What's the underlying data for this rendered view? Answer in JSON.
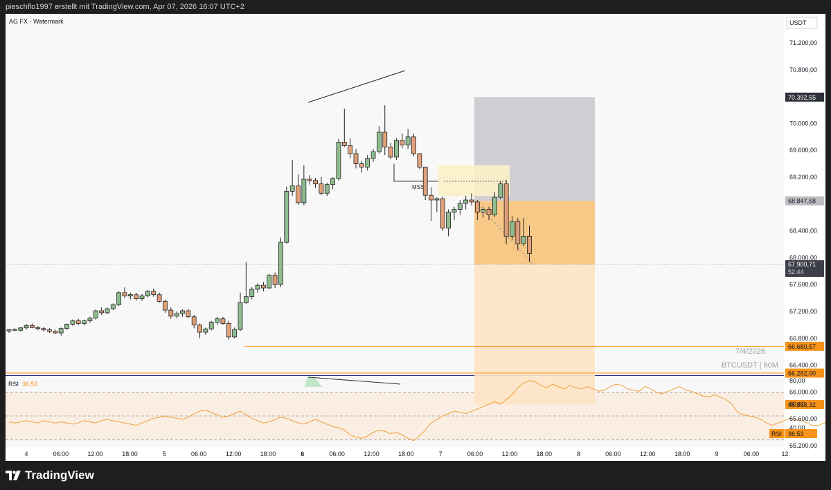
{
  "header": {
    "text": "pieschflo1997 erstellt mit TradingView.com, Apr 07, 2026 16:07 UTC+2"
  },
  "chart": {
    "title": "AG FX - Watermark",
    "currency": "USDT",
    "watermark_date": "7/4/2026",
    "watermark_symbol": "BTCUSDT | 60M",
    "mss_label": "MSS",
    "colors": {
      "up_body": "#8fbc8f",
      "down_body": "#e0a07a",
      "accent": "#f7931a",
      "price_tag": "#3c3f48"
    }
  },
  "price_axis": {
    "ticks": [
      "71.200,00",
      "70.800,00",
      "70.000,00",
      "69.600,00",
      "69.200,00",
      "68.400,00",
      "68.000,00",
      "67.600,00",
      "67.200,00",
      "66.800,00",
      "66.400,00",
      "66.000,00",
      "65.600,00",
      "65.200,00"
    ],
    "labels": {
      "target": "70.392,55",
      "entry": "68.847,68",
      "current_price": "67.900,71",
      "countdown": "52:44",
      "level1": "66.680,57",
      "level2": "66.282,00",
      "stop": "65.813,32"
    }
  },
  "rsi": {
    "label": "RSI",
    "value": "36,53",
    "axis_ticks": [
      "80,00",
      "60,00",
      "40,00"
    ],
    "tag_label": "RSI",
    "tag_value": "36,53",
    "values": [
      45,
      44,
      45,
      46,
      45,
      44,
      46,
      45,
      44,
      45,
      44,
      43,
      44,
      46,
      45,
      44,
      46,
      47,
      46,
      45,
      44,
      43,
      42,
      44,
      46,
      48,
      49,
      50,
      49,
      48,
      47,
      49,
      52,
      54,
      55,
      53,
      51,
      49,
      50,
      52,
      54,
      51,
      48,
      46,
      44,
      45,
      47,
      49,
      48,
      46,
      44,
      43,
      45,
      47,
      45,
      43,
      41,
      40,
      38,
      34,
      32,
      31,
      33,
      36,
      38,
      37,
      35,
      36,
      34,
      31,
      29,
      33,
      38,
      44,
      47,
      50,
      52,
      54,
      53,
      52,
      54,
      56,
      58,
      60,
      62,
      60,
      64,
      68,
      74,
      78,
      80,
      79,
      76,
      74,
      77,
      75,
      73,
      76,
      74,
      73,
      75,
      73,
      71,
      72,
      75,
      77,
      76,
      73,
      72,
      71,
      75,
      73,
      70,
      69,
      71,
      73,
      75,
      72,
      71,
      69,
      67,
      66,
      68,
      66,
      64,
      60,
      53,
      51,
      50,
      49,
      47,
      44,
      42,
      44,
      46,
      48,
      47,
      46,
      44,
      42,
      42,
      44,
      47,
      49,
      47,
      44,
      42,
      41,
      42,
      41,
      39,
      37,
      36
    ]
  },
  "time_axis": {
    "ticks": [
      "4",
      "06:00",
      "12:00",
      "18:00",
      "5",
      "06:00",
      "12:00",
      "18:00",
      "6",
      "06:00",
      "12:00",
      "18:00",
      "7",
      "06:00",
      "12:00",
      "18:00",
      "8",
      "06:00",
      "12:00",
      "18:00",
      "9",
      "06:00",
      "12:"
    ]
  },
  "candles": [
    [
      66910,
      66938,
      66880,
      66930
    ],
    [
      66930,
      66950,
      66900,
      66920
    ],
    [
      66920,
      66970,
      66900,
      66955
    ],
    [
      66955,
      67010,
      66930,
      66990
    ],
    [
      66990,
      67020,
      66950,
      66960
    ],
    [
      66960,
      66980,
      66920,
      66945
    ],
    [
      66945,
      66970,
      66900,
      66925
    ],
    [
      66925,
      66950,
      66880,
      66905
    ],
    [
      66905,
      66930,
      66860,
      66880
    ],
    [
      66880,
      66960,
      66840,
      66945
    ],
    [
      66945,
      67020,
      66930,
      67010
    ],
    [
      67010,
      67080,
      66990,
      67060
    ],
    [
      67060,
      67090,
      67000,
      67020
    ],
    [
      67020,
      67080,
      66990,
      67060
    ],
    [
      67060,
      67120,
      67030,
      67100
    ],
    [
      67100,
      67230,
      67080,
      67210
    ],
    [
      67210,
      67260,
      67150,
      67180
    ],
    [
      67180,
      67260,
      67160,
      67240
    ],
    [
      67240,
      67320,
      67220,
      67300
    ],
    [
      67300,
      67500,
      67280,
      67480
    ],
    [
      67480,
      67560,
      67400,
      67430
    ],
    [
      67430,
      67480,
      67380,
      67450
    ],
    [
      67450,
      67480,
      67360,
      67390
    ],
    [
      67390,
      67460,
      67360,
      67430
    ],
    [
      67430,
      67520,
      67410,
      67500
    ],
    [
      67500,
      67540,
      67420,
      67450
    ],
    [
      67450,
      67480,
      67330,
      67350
    ],
    [
      67350,
      67380,
      67180,
      67220
    ],
    [
      67220,
      67260,
      67090,
      67130
    ],
    [
      67130,
      67200,
      67100,
      67170
    ],
    [
      67170,
      67230,
      67120,
      67210
    ],
    [
      67210,
      67240,
      67100,
      67120
    ],
    [
      67120,
      67150,
      66950,
      67000
    ],
    [
      67000,
      67020,
      66800,
      66890
    ],
    [
      66890,
      66960,
      66850,
      66940
    ],
    [
      66940,
      67060,
      66920,
      67040
    ],
    [
      67040,
      67120,
      67000,
      67090
    ],
    [
      67090,
      67120,
      67000,
      67020
    ],
    [
      67020,
      67060,
      66780,
      66820
    ],
    [
      66820,
      66960,
      66800,
      66930
    ],
    [
      66930,
      67480,
      66910,
      67330
    ],
    [
      67330,
      67940,
      67310,
      67420
    ],
    [
      67420,
      67560,
      67380,
      67530
    ],
    [
      67530,
      67620,
      67480,
      67590
    ],
    [
      67590,
      67640,
      67500,
      67550
    ],
    [
      67550,
      67760,
      67530,
      67740
    ],
    [
      67740,
      67780,
      67550,
      67600
    ],
    [
      67600,
      68300,
      67560,
      68230
    ],
    [
      68230,
      69060,
      68210,
      68990
    ],
    [
      68990,
      69460,
      68920,
      69070
    ],
    [
      69070,
      69240,
      68790,
      68820
    ],
    [
      68820,
      69380,
      68780,
      69170
    ],
    [
      69170,
      69230,
      69090,
      69150
    ],
    [
      69150,
      69190,
      69040,
      69100
    ],
    [
      69100,
      69200,
      68930,
      68960
    ],
    [
      68960,
      69120,
      68920,
      69090
    ],
    [
      69090,
      69200,
      69020,
      69180
    ],
    [
      69180,
      69770,
      69150,
      69720
    ],
    [
      69720,
      70220,
      69650,
      69670
    ],
    [
      69670,
      69780,
      69480,
      69550
    ],
    [
      69550,
      69620,
      69330,
      69400
    ],
    [
      69400,
      69440,
      69270,
      69350
    ],
    [
      69350,
      69530,
      69300,
      69480
    ],
    [
      69480,
      69620,
      69430,
      69580
    ],
    [
      69580,
      69960,
      69550,
      69870
    ],
    [
      69870,
      70270,
      69530,
      69650
    ],
    [
      69650,
      69710,
      69470,
      69500
    ],
    [
      69500,
      69780,
      69460,
      69750
    ],
    [
      69750,
      69850,
      69630,
      69680
    ],
    [
      69680,
      69920,
      69620,
      69800
    ],
    [
      69800,
      69850,
      69510,
      69550
    ],
    [
      69550,
      69560,
      69320,
      69350
    ],
    [
      69350,
      69360,
      68860,
      68930
    ],
    [
      68930,
      69050,
      68550,
      68860
    ],
    [
      68860,
      68900,
      68680,
      68880
    ],
    [
      68880,
      68910,
      68400,
      68440
    ],
    [
      68440,
      68720,
      68320,
      68680
    ],
    [
      68680,
      68760,
      68560,
      68720
    ],
    [
      68720,
      68860,
      68640,
      68810
    ],
    [
      68810,
      68920,
      68720,
      68860
    ],
    [
      68860,
      68960,
      68780,
      68830
    ],
    [
      68830,
      68860,
      68560,
      68680
    ],
    [
      68680,
      68760,
      68600,
      68720
    ],
    [
      68720,
      68760,
      68560,
      68640
    ],
    [
      68640,
      68980,
      68610,
      68900
    ],
    [
      68900,
      69140,
      68870,
      69100
    ],
    [
      69100,
      69160,
      68200,
      68320
    ],
    [
      68320,
      68620,
      68260,
      68540
    ],
    [
      68540,
      68590,
      68110,
      68210
    ],
    [
      68210,
      68590,
      68170,
      68320
    ],
    [
      68320,
      68480,
      67940,
      68060
    ]
  ]
}
